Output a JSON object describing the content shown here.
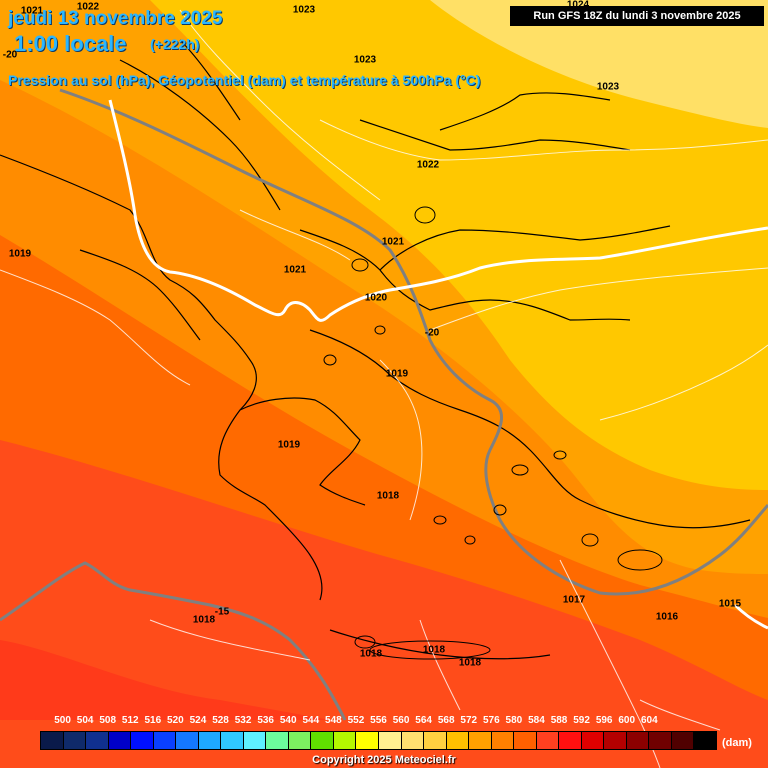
{
  "header": {
    "title_date": "jeudi 13 novembre 2025",
    "title_time": "1:00 locale",
    "title_hours": "(+222h)",
    "title_params": "Pression au sol (hPa), Géopotentiel (dam) et température à 500hPa (°C)",
    "run_info": "Run GFS 18Z du lundi 3 novembre 2025"
  },
  "map_labels": {
    "isobars": [
      {
        "text": "1021",
        "name": "isobar-label-1021-nw"
      },
      {
        "text": "1022",
        "name": "isobar-label-1022-top"
      },
      {
        "text": "1023",
        "name": "isobar-label-1023-top"
      },
      {
        "text": "1023",
        "name": "isobar-label-1023-center"
      },
      {
        "text": "1023",
        "name": "isobar-label-1023-east"
      },
      {
        "text": "1024",
        "name": "isobar-label-1024-ne"
      },
      {
        "text": "1022",
        "name": "isobar-label-1022-center"
      },
      {
        "text": "1021",
        "name": "isobar-label-1021-center"
      },
      {
        "text": "1021",
        "name": "isobar-label-1021-west"
      },
      {
        "text": "1019",
        "name": "isobar-label-1019-west"
      },
      {
        "text": "1020",
        "name": "isobar-label-1020"
      },
      {
        "text": "1019",
        "name": "isobar-label-1019-center"
      },
      {
        "text": "1019",
        "name": "isobar-label-1019-sw"
      },
      {
        "text": "1018",
        "name": "isobar-label-1018-center"
      },
      {
        "text": "1018",
        "name": "isobar-label-1018-south"
      },
      {
        "text": "1018",
        "name": "isobar-label-1018-crete-w"
      },
      {
        "text": "1018",
        "name": "isobar-label-1018-crete-c"
      },
      {
        "text": "1018",
        "name": "isobar-label-1018-crete-e"
      },
      {
        "text": "1017",
        "name": "isobar-label-1017"
      },
      {
        "text": "1016",
        "name": "isobar-label-1016"
      },
      {
        "text": "1015",
        "name": "isobar-label-1015"
      }
    ],
    "isotherms": [
      {
        "text": "-20",
        "name": "isotherm-label-minus20-nw"
      },
      {
        "text": "-20",
        "name": "isotherm-label-minus20"
      },
      {
        "text": "-15",
        "name": "isotherm-label-minus15"
      }
    ]
  },
  "legend": {
    "values": [
      "500",
      "504",
      "508",
      "512",
      "516",
      "520",
      "524",
      "528",
      "532",
      "536",
      "540",
      "544",
      "548",
      "552",
      "556",
      "560",
      "564",
      "568",
      "572",
      "576",
      "580",
      "584",
      "588",
      "592",
      "596",
      "600",
      "604"
    ],
    "colors": [
      "#0a1a4a",
      "#0f2a6a",
      "#10308f",
      "#0000c8",
      "#0010ff",
      "#0a40ff",
      "#1478ff",
      "#1ea8ff",
      "#30c8ff",
      "#5ef0ff",
      "#6cfc9c",
      "#7cf060",
      "#60e000",
      "#b4f800",
      "#ffff00",
      "#fff090",
      "#ffe070",
      "#ffd040",
      "#ffc000",
      "#ffa000",
      "#ff8000",
      "#ff6000",
      "#ff4020",
      "#ff1010",
      "#e00000",
      "#b40000",
      "#8c0000",
      "#700000",
      "#500000",
      "#000000"
    ],
    "unit": "(dam)"
  },
  "footer": {
    "copyright": "Copyright 2025 Meteociel.fr"
  },
  "colors": {
    "geo_564": "#ffc800",
    "geo_568": "#ffa200",
    "geo_572": "#ff8c00",
    "geo_576": "#ff6a00",
    "geo_580": "#ff4c1a",
    "geo_556": "#ffe680",
    "geo_560": "#ffd800",
    "isotherm_line": "#808080",
    "isobar_line": "#ffffff",
    "coast_line": "#000000"
  }
}
